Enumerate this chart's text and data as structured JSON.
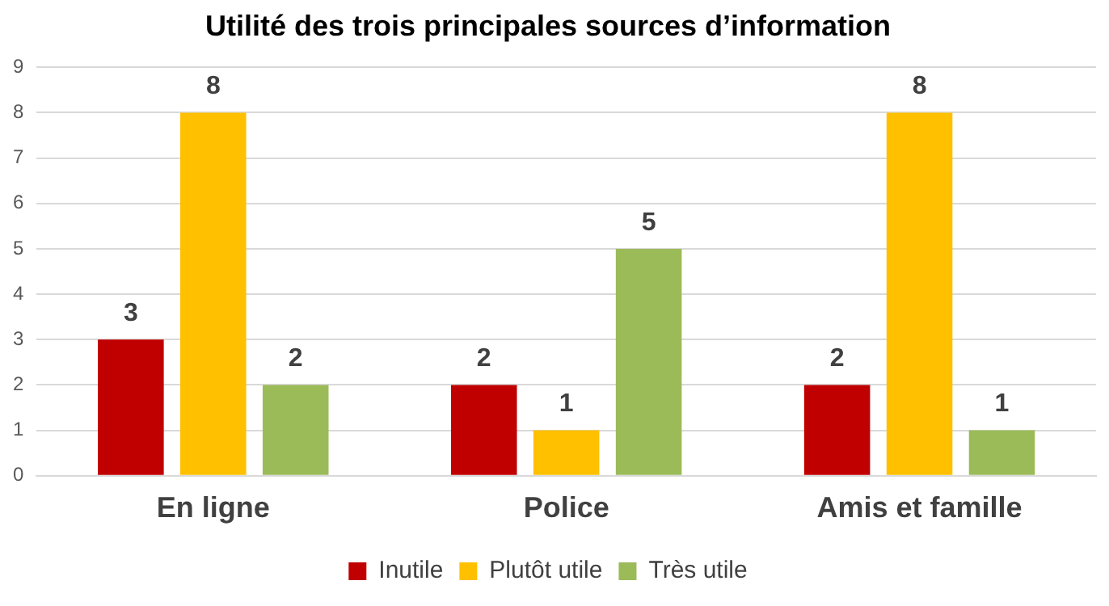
{
  "chart_data": {
    "type": "bar",
    "title": "Utilité des trois principales sources d’information",
    "categories": [
      "En ligne",
      "Police",
      "Amis et famille"
    ],
    "series": [
      {
        "name": "Inutile",
        "color": "#c00000",
        "values": [
          3,
          2,
          2
        ]
      },
      {
        "name": "Plutôt utile",
        "color": "#ffc000",
        "values": [
          8,
          1,
          8
        ]
      },
      {
        "name": "Très utile",
        "color": "#9bbb59",
        "values": [
          2,
          5,
          1
        ]
      }
    ],
    "ylim": [
      0,
      9
    ],
    "yticks": [
      0,
      1,
      2,
      3,
      4,
      5,
      6,
      7,
      8,
      9
    ],
    "grid": "y",
    "legend": "bottom",
    "data_labels": true
  }
}
